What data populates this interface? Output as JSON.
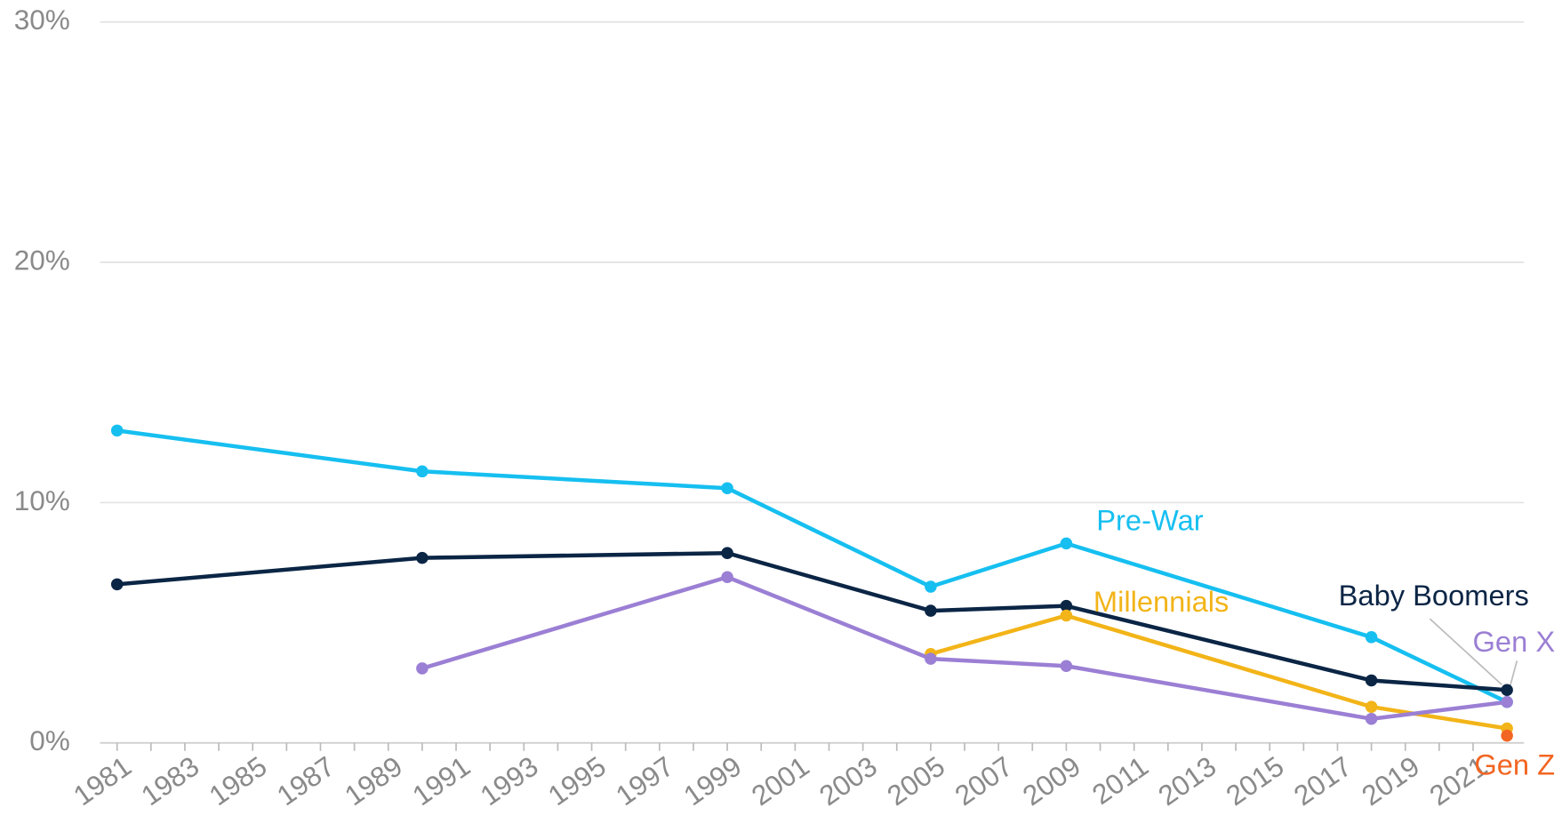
{
  "chart_data": {
    "type": "line",
    "x": [
      1981,
      1990,
      1999,
      2005,
      2009,
      2018,
      2022
    ],
    "series": [
      {
        "name": "Pre-War",
        "color": "#16bff0",
        "values": [
          13.0,
          11.3,
          10.6,
          6.5,
          8.3,
          4.4,
          1.7
        ]
      },
      {
        "name": "Baby Boomers",
        "color": "#0b2545",
        "values": [
          6.6,
          7.7,
          7.9,
          5.5,
          5.7,
          2.6,
          2.2
        ]
      },
      {
        "name": "Millennials",
        "color": "#f2b418",
        "values": [
          null,
          null,
          null,
          3.7,
          5.3,
          1.5,
          0.6
        ]
      },
      {
        "name": "Gen X",
        "color": "#9b7fd4",
        "values": [
          null,
          3.1,
          6.9,
          3.5,
          3.2,
          1.0,
          1.7
        ]
      },
      {
        "name": "Gen Z",
        "color": "#f26522",
        "values": [
          null,
          null,
          null,
          null,
          null,
          null,
          0.3
        ]
      }
    ],
    "xlim": [
      1980.5,
      2022.5
    ],
    "xticks": [
      {
        "value": 1981,
        "label": "1981"
      },
      {
        "value": 1983,
        "label": "1983"
      },
      {
        "value": 1985,
        "label": "1985"
      },
      {
        "value": 1987,
        "label": "1987"
      },
      {
        "value": 1989,
        "label": "1989"
      },
      {
        "value": 1991,
        "label": "1991"
      },
      {
        "value": 1993,
        "label": "1993"
      },
      {
        "value": 1995,
        "label": "1995"
      },
      {
        "value": 1997,
        "label": "1997"
      },
      {
        "value": 1999,
        "label": "1999"
      },
      {
        "value": 2001,
        "label": "2001"
      },
      {
        "value": 2003,
        "label": "2003"
      },
      {
        "value": 2005,
        "label": "2005"
      },
      {
        "value": 2007,
        "label": "2007"
      },
      {
        "value": 2009,
        "label": "2009"
      },
      {
        "value": 2011,
        "label": "2011"
      },
      {
        "value": 2013,
        "label": "2013"
      },
      {
        "value": 2015,
        "label": "2015"
      },
      {
        "value": 2017,
        "label": "2017"
      },
      {
        "value": 2019,
        "label": "2019"
      },
      {
        "value": 2021,
        "label": "2021"
      }
    ],
    "ylim": [
      0,
      30
    ],
    "yticks": [
      {
        "value": 0,
        "label": "0%"
      },
      {
        "value": 10,
        "label": "10%"
      },
      {
        "value": 20,
        "label": "20%"
      },
      {
        "value": 30,
        "label": "30%"
      }
    ],
    "grid": true
  }
}
